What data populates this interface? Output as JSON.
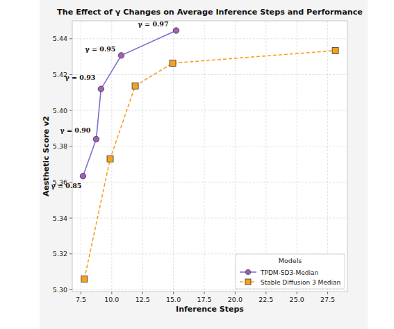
{
  "chart_data": {
    "type": "line",
    "title": "The Effect of γ Changes on Average Inference Steps and Performance",
    "x_label": "Inference Steps",
    "y_label": "Aesthetic Score v2",
    "xlim": [
      6.8,
      29.1
    ],
    "ylim": [
      5.299,
      5.45
    ],
    "xticks": [
      {
        "value": 7.5,
        "label": "7.5"
      },
      {
        "value": 10,
        "label": "10.0"
      },
      {
        "value": 12.5,
        "label": "12.5"
      },
      {
        "value": 15,
        "label": "15.0"
      },
      {
        "value": 17.5,
        "label": "17.5"
      },
      {
        "value": 20,
        "label": "20.0"
      },
      {
        "value": 22.5,
        "label": "22.5"
      },
      {
        "value": 25,
        "label": "25.0"
      },
      {
        "value": 27.5,
        "label": "27.5"
      }
    ],
    "yticks": [
      {
        "value": 5.3,
        "label": "5.30"
      },
      {
        "value": 5.32,
        "label": "5.32"
      },
      {
        "value": 5.34,
        "label": "5.34"
      },
      {
        "value": 5.36,
        "label": "5.36"
      },
      {
        "value": 5.38,
        "label": "5.38"
      },
      {
        "value": 5.4,
        "label": "5.40"
      },
      {
        "value": 5.42,
        "label": "5.42"
      },
      {
        "value": 5.44,
        "label": "5.44"
      }
    ],
    "grid": true,
    "legend": "lower right",
    "legend_title": "Models",
    "series": [
      {
        "name": "TPDM-SD3-Median",
        "color": "#7b6fd6",
        "marker": "circle",
        "line_style": "solid",
        "x": [
          7.67,
          8.74,
          9.13,
          10.77,
          15.22
        ],
        "values": [
          5.3634,
          5.384,
          5.412,
          5.4307,
          5.4446
        ]
      },
      {
        "name": "Stable Diffusion 3 Median",
        "color": "#f5a020",
        "marker": "square",
        "line_style": "dashed",
        "x": [
          7.78,
          9.87,
          11.9,
          14.94,
          28.12
        ],
        "values": [
          5.306,
          5.373,
          5.4137,
          5.4264,
          5.4334
        ]
      }
    ],
    "annotations": [
      "γ = 0.85",
      "γ = 0.90",
      "γ = 0.93",
      "γ = 0.95",
      "γ = 0.97"
    ]
  }
}
